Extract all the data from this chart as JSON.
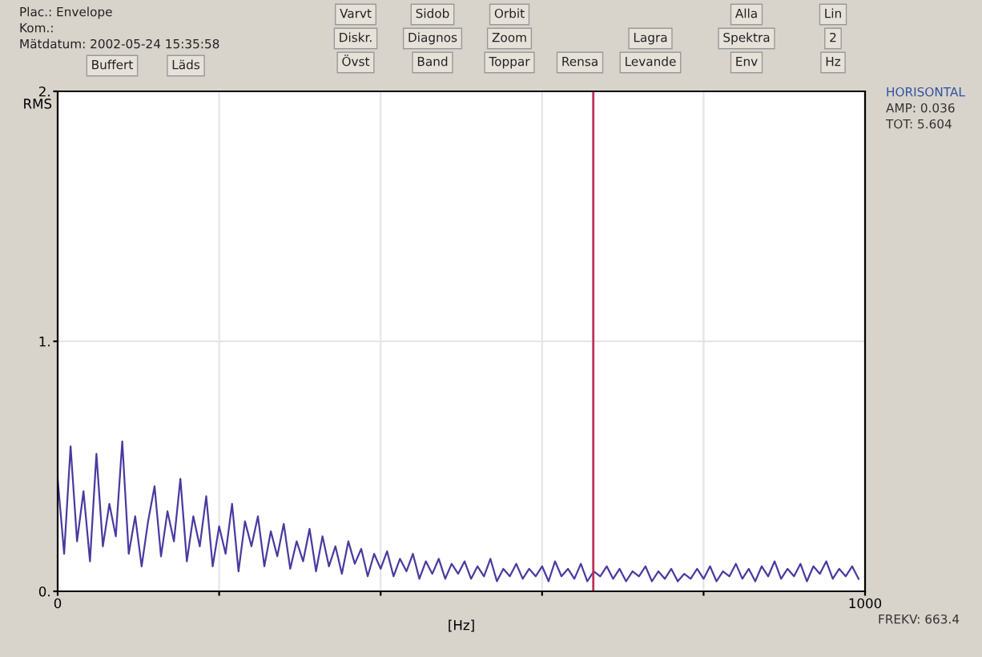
{
  "chart_data": {
    "type": "line",
    "xlabel": "[Hz]",
    "ylabel": "RMS",
    "annotations": [
      "Plac.: Envelope",
      "Kom.:",
      "Mätdatum: 2002-05-24 15:35:58",
      "Buffert",
      "Läds",
      "Varvt",
      "Sidob",
      "Orbit",
      "Diskr.",
      "Diagnos",
      "Zoom",
      "Övst",
      "Band",
      "Toppar",
      "Rensa",
      "Lagra",
      "Levande",
      "Alla",
      "Lin",
      "Spektra",
      "2",
      "Env",
      "Hz",
      "HORISONTAL",
      "AMP: 0.036",
      "TOT: 5.604",
      "FREKV: 663.4"
    ],
    "series": [
      {
        "color": "#4a3aa0",
        "x": [
          0,
          8,
          16,
          24,
          32,
          40,
          48,
          56,
          64,
          72,
          80,
          88,
          96,
          104,
          112,
          120,
          128,
          136,
          144,
          152,
          160,
          168,
          176,
          184,
          192,
          200,
          208,
          216,
          224,
          232,
          240,
          248,
          256,
          264,
          272,
          280,
          288,
          296,
          304,
          312,
          320,
          328,
          336,
          344,
          352,
          360,
          368,
          376,
          384,
          392,
          400,
          408,
          416,
          424,
          432,
          440,
          448,
          456,
          464,
          472,
          480,
          488,
          496,
          504,
          512,
          520,
          528,
          536,
          544,
          552,
          560,
          568,
          576,
          584,
          592,
          600,
          608,
          616,
          624,
          632,
          640,
          648,
          656,
          664,
          672,
          680,
          688,
          696,
          704,
          712,
          720,
          728,
          736,
          744,
          752,
          760,
          768,
          776,
          784,
          792,
          800,
          808,
          816,
          824,
          832,
          840,
          848,
          856,
          864,
          872,
          880,
          888,
          896,
          904,
          912,
          920,
          928,
          936,
          944,
          952,
          960,
          968,
          976,
          984,
          992
        ],
        "values": [
          0.45,
          0.15,
          0.58,
          0.2,
          0.4,
          0.12,
          0.55,
          0.18,
          0.35,
          0.22,
          0.6,
          0.15,
          0.3,
          0.1,
          0.28,
          0.42,
          0.14,
          0.32,
          0.2,
          0.45,
          0.12,
          0.3,
          0.18,
          0.38,
          0.1,
          0.26,
          0.15,
          0.35,
          0.08,
          0.28,
          0.18,
          0.3,
          0.1,
          0.24,
          0.14,
          0.27,
          0.09,
          0.2,
          0.12,
          0.25,
          0.08,
          0.22,
          0.1,
          0.18,
          0.07,
          0.2,
          0.11,
          0.17,
          0.06,
          0.15,
          0.09,
          0.16,
          0.06,
          0.13,
          0.08,
          0.15,
          0.05,
          0.12,
          0.07,
          0.13,
          0.05,
          0.11,
          0.07,
          0.12,
          0.05,
          0.1,
          0.06,
          0.13,
          0.04,
          0.09,
          0.06,
          0.11,
          0.05,
          0.09,
          0.06,
          0.1,
          0.04,
          0.12,
          0.06,
          0.09,
          0.05,
          0.11,
          0.04,
          0.08,
          0.06,
          0.1,
          0.05,
          0.09,
          0.04,
          0.08,
          0.06,
          0.1,
          0.04,
          0.08,
          0.05,
          0.09,
          0.04,
          0.07,
          0.05,
          0.09,
          0.05,
          0.1,
          0.04,
          0.08,
          0.06,
          0.11,
          0.05,
          0.09,
          0.04,
          0.1,
          0.06,
          0.12,
          0.05,
          0.09,
          0.06,
          0.11,
          0.04,
          0.1,
          0.07,
          0.12,
          0.05,
          0.09,
          0.06,
          0.1,
          0.05
        ]
      }
    ],
    "xlim": [
      0,
      1000
    ],
    "ylim": [
      0,
      2
    ],
    "xticks": [
      0,
      {
        "value": 200,
        "label": null
      },
      {
        "value": 400,
        "label": null
      },
      {
        "value": 600,
        "label": null
      },
      {
        "value": 800,
        "label": null
      },
      1000
    ],
    "yticks": [
      {
        "value": 0,
        "label": "0."
      },
      {
        "value": 1,
        "label": "1."
      },
      {
        "value": 2,
        "label": "2."
      }
    ],
    "ref_lines": [
      {
        "axis": "x",
        "value": 663.4,
        "label": null,
        "color": "#c0305a"
      }
    ],
    "grid": true,
    "legend": false
  }
}
